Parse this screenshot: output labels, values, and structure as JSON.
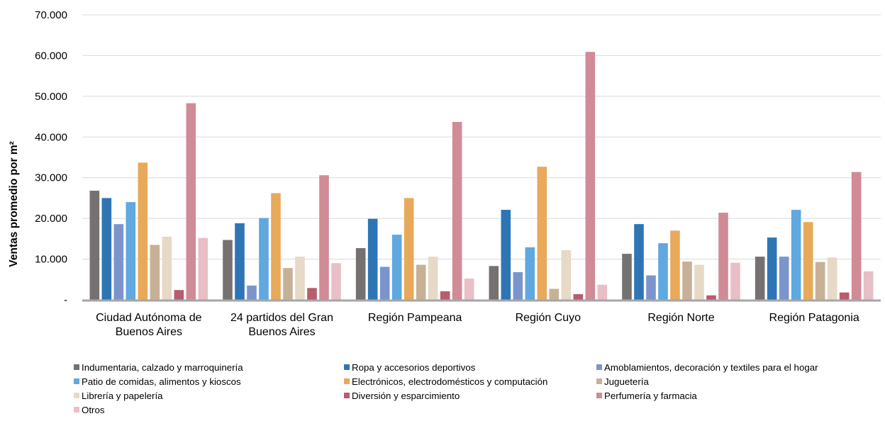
{
  "chart_data": {
    "type": "bar",
    "ylabel": "Ventas promedio por m²",
    "xlabel": "",
    "ylim": [
      0,
      70000
    ],
    "yticks": [
      {
        "value": 0,
        "label": "-"
      },
      {
        "value": 10000,
        "label": "10.000"
      },
      {
        "value": 20000,
        "label": "20.000"
      },
      {
        "value": 30000,
        "label": "30.000"
      },
      {
        "value": 40000,
        "label": "40.000"
      },
      {
        "value": 50000,
        "label": "50.000"
      },
      {
        "value": 60000,
        "label": "60.000"
      },
      {
        "value": 70000,
        "label": "70.000"
      }
    ],
    "grid": true,
    "legend_position": "bottom",
    "categories": [
      [
        "Ciudad Autónoma de",
        "Buenos Aires"
      ],
      [
        "24 partidos del Gran",
        "Buenos Aires"
      ],
      [
        "Región Pampeana"
      ],
      [
        "Región Cuyo"
      ],
      [
        "Región Norte"
      ],
      [
        "Región Patagonia"
      ]
    ],
    "series": [
      {
        "name": "Indumentaria, calzado y marroquinería",
        "color": "#767171",
        "values": [
          26800,
          14700,
          12700,
          8300,
          11300,
          10600
        ]
      },
      {
        "name": "Ropa y accesorios deportivos",
        "color": "#2e75b6",
        "values": [
          25000,
          18800,
          19900,
          22100,
          18600,
          15300
        ]
      },
      {
        "name": "Amoblamientos, decoración y textiles para el hogar",
        "color": "#7b95cc",
        "values": [
          18600,
          3500,
          8100,
          6800,
          6000,
          10600
        ]
      },
      {
        "name": "Patio de comidas, alimentos y kioscos",
        "color": "#5fa8e0",
        "values": [
          24000,
          20100,
          16000,
          12900,
          13900,
          22100
        ]
      },
      {
        "name": "Electrónicos, electrodomésticos y computación",
        "color": "#e8a95b",
        "values": [
          33700,
          26200,
          25000,
          32700,
          17000,
          19100
        ]
      },
      {
        "name": "Juguetería",
        "color": "#c7b196",
        "values": [
          13500,
          7800,
          8600,
          2700,
          9400,
          9300
        ]
      },
      {
        "name": "Librería y papelería",
        "color": "#e6d9c6",
        "values": [
          15500,
          10600,
          10600,
          12200,
          8600,
          10400
        ]
      },
      {
        "name": "Diversión y esparcimiento",
        "color": "#b85c6e",
        "values": [
          2400,
          2900,
          2100,
          1400,
          1100,
          1800
        ]
      },
      {
        "name": "Perfumería y farmacia",
        "color": "#d08b97",
        "values": [
          48300,
          30600,
          43700,
          60900,
          21400,
          31400
        ]
      },
      {
        "name": "Otros",
        "color": "#e8bfc6",
        "values": [
          15200,
          9000,
          5200,
          3700,
          9100,
          7000
        ]
      }
    ]
  }
}
